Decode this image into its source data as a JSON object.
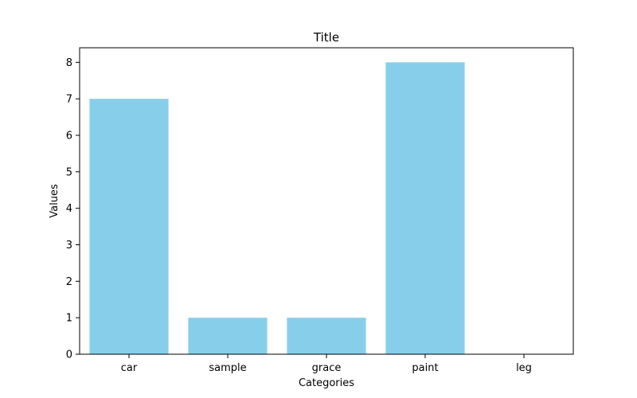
{
  "chart_data": {
    "type": "bar",
    "title": "Title",
    "xlabel": "Categories",
    "ylabel": "Values",
    "categories": [
      "car",
      "sample",
      "grace",
      "paint",
      "leg"
    ],
    "values": [
      7,
      1,
      1,
      8,
      0
    ],
    "ylim": [
      0,
      8.4
    ],
    "yticks": [
      "0",
      "1",
      "2",
      "3",
      "4",
      "5",
      "6",
      "7",
      "8"
    ],
    "grid": false,
    "bar_color": "#87ceeb"
  }
}
